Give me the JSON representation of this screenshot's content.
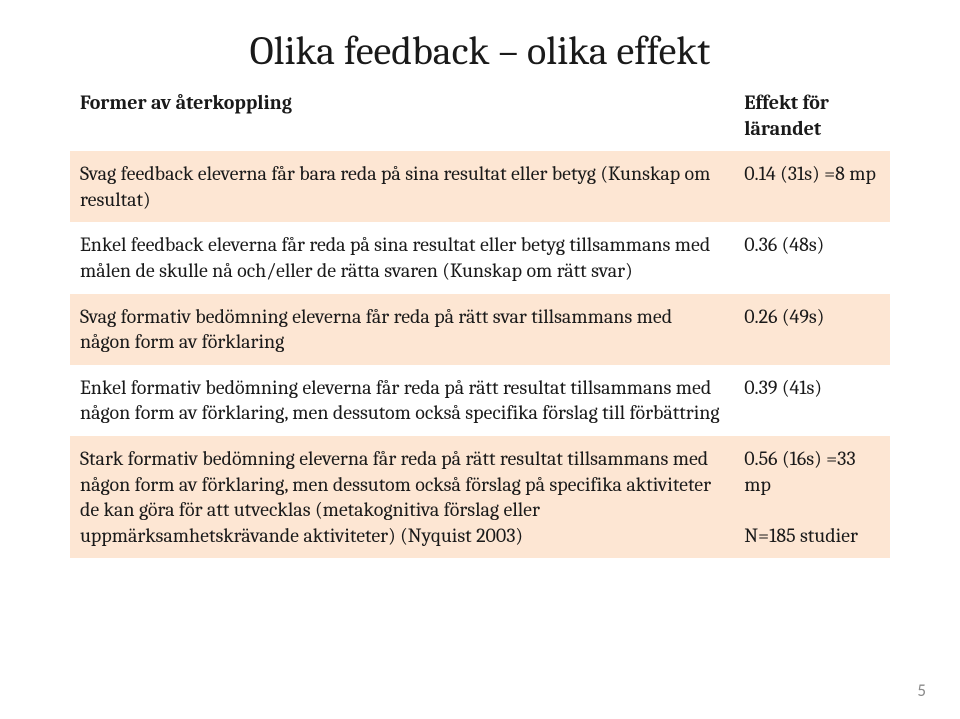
{
  "title": "Olika feedback – olika effekt",
  "page_number": "5",
  "table": {
    "band_color": "#fde6d3",
    "background_color": "#ffffff",
    "text_color": "#1a1a1a",
    "header": {
      "col1": "Former av återkoppling",
      "col2": "Effekt för lärandet"
    },
    "rows": [
      {
        "c1": "Svag feedback eleverna får bara reda på sina resultat eller betyg (Kunskap om resultat)",
        "c2": "0.14 (31s) =8 mp",
        "band": true
      },
      {
        "c1": "Enkel feedback eleverna får reda på sina resultat eller betyg tillsammans med målen de skulle nå och/eller de rätta svaren (Kunskap om rätt svar)",
        "c2": "0.36 (48s)",
        "band": false
      },
      {
        "c1": "Svag formativ bedömning eleverna får reda på rätt svar tillsammans med någon form av förklaring",
        "c2": "0.26 (49s)",
        "band": true
      },
      {
        "c1": "Enkel formativ bedömning eleverna får reda på rätt resultat tillsammans med någon form av förklaring, men dessutom också specifika förslag till förbättring",
        "c2": "0.39 (41s)",
        "band": false
      },
      {
        "c1": "Stark formativ bedömning eleverna får reda på rätt resultat tillsammans med någon form av förklaring, men dessutom också förslag på specifika aktiviteter de kan göra för att utvecklas (metakognitiva förslag eller uppmärksamhetskrävande aktiviteter) (Nyquist 2003)",
        "c2": "0.56 (16s) =33 mp\n\nN=185 studier",
        "band": true
      }
    ]
  }
}
